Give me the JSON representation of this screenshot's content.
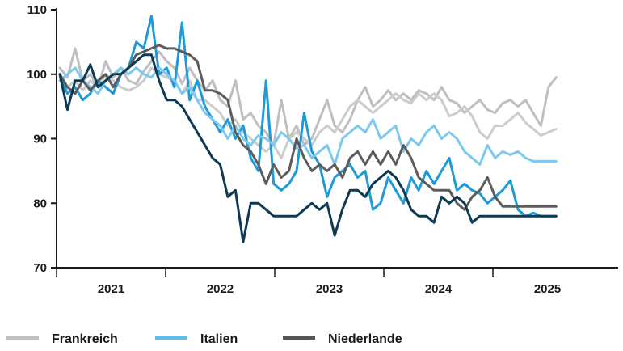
{
  "chart_data": {
    "type": "line",
    "title": "",
    "xlabel": "",
    "ylabel": "",
    "ylim": [
      70,
      110
    ],
    "xlim": [
      2020.5,
      2025.5
    ],
    "y_ticks": [
      70,
      80,
      90,
      100,
      110
    ],
    "x_ticks": [
      {
        "label": "2021",
        "value": 2021.0
      },
      {
        "label": "2022",
        "value": 2022.0
      },
      {
        "label": "2023",
        "value": 2023.0
      },
      {
        "label": "2024",
        "value": 2024.0
      },
      {
        "label": "2025",
        "value": 2025.0
      }
    ],
    "x_gridlines": [
      2021.5,
      2022.5,
      2023.5,
      2024.5
    ],
    "grid": "vertical year separators",
    "legend_placement": "bottom",
    "series": [
      {
        "name": "Frankreich",
        "color": "#bfbfbf",
        "x": [
          2020.53,
          2020.6,
          2020.67,
          2020.74,
          2020.81,
          2020.88,
          2020.95,
          2021.02,
          2021.09,
          2021.16,
          2021.23,
          2021.3,
          2021.37,
          2021.44,
          2021.51,
          2021.58,
          2021.65,
          2021.72,
          2021.79,
          2021.86,
          2021.93,
          2022.0,
          2022.07,
          2022.14,
          2022.21,
          2022.28,
          2022.35,
          2022.42,
          2022.49,
          2022.56,
          2022.63,
          2022.7,
          2022.77,
          2022.84,
          2022.91,
          2022.98,
          2023.05,
          2023.12,
          2023.19,
          2023.26,
          2023.33,
          2023.4,
          2023.47,
          2023.54,
          2023.61,
          2023.68,
          2023.75,
          2023.82,
          2023.89,
          2023.96,
          2024.03,
          2024.1,
          2024.17,
          2024.24,
          2024.31,
          2024.38,
          2024.45,
          2024.52,
          2024.59,
          2024.66,
          2024.73,
          2024.8,
          2024.87,
          2024.94,
          2025.01,
          2025.08
        ],
        "values": [
          101,
          99.5,
          104,
          99,
          100,
          98,
          102,
          99.5,
          101,
          99,
          98.5,
          100.5,
          102,
          103.5,
          102,
          101,
          98.5,
          101,
          99,
          97.5,
          99,
          96,
          95,
          99,
          93,
          94,
          92,
          91,
          89,
          96,
          90,
          92,
          89,
          90,
          93,
          96,
          92,
          91,
          93,
          96,
          98,
          95,
          96,
          97.5,
          96,
          97,
          96,
          97.5,
          97,
          96,
          98,
          96,
          95.5,
          94,
          95,
          96,
          94.5,
          94,
          95.5,
          96,
          95,
          96,
          94,
          92,
          98,
          99.5
        ]
      },
      {
        "name": "Frankreich",
        "color": "#cccccc",
        "x": [
          2020.53,
          2020.6,
          2020.67,
          2020.74,
          2020.81,
          2020.88,
          2020.95,
          2021.02,
          2021.09,
          2021.16,
          2021.23,
          2021.3,
          2021.37,
          2021.44,
          2021.51,
          2021.58,
          2021.65,
          2021.72,
          2021.79,
          2021.86,
          2021.93,
          2022.0,
          2022.07,
          2022.14,
          2022.21,
          2022.28,
          2022.35,
          2022.42,
          2022.49,
          2022.56,
          2022.63,
          2022.7,
          2022.77,
          2022.84,
          2022.91,
          2022.98,
          2023.05,
          2023.12,
          2023.19,
          2023.26,
          2023.33,
          2023.4,
          2023.47,
          2023.54,
          2023.61,
          2023.68,
          2023.75,
          2023.82,
          2023.89,
          2023.96,
          2024.03,
          2024.1,
          2024.17,
          2024.24,
          2024.31,
          2024.38,
          2024.45,
          2024.52,
          2024.59,
          2024.66,
          2024.73,
          2024.8,
          2024.87,
          2024.94,
          2025.01,
          2025.08
        ],
        "values": [
          100,
          98,
          99,
          97.5,
          99,
          98,
          100,
          99,
          98,
          97.5,
          98,
          99,
          101,
          100,
          99.5,
          99,
          97,
          99,
          96,
          96,
          95,
          94,
          92,
          93,
          91,
          90,
          89,
          88,
          89,
          87,
          90,
          91,
          90,
          89,
          91,
          92,
          91,
          93,
          95,
          96,
          95,
          94,
          95,
          96,
          97,
          96,
          95.5,
          97,
          96,
          97,
          96,
          93.5,
          94,
          95,
          93.5,
          91,
          90,
          92,
          92,
          93,
          94,
          92.5,
          91.5,
          90.5,
          91,
          91.5
        ]
      },
      {
        "name": "Italien",
        "color": "#1e9ad6",
        "x": [
          2020.53,
          2020.6,
          2020.67,
          2020.74,
          2020.81,
          2020.88,
          2020.95,
          2021.02,
          2021.09,
          2021.16,
          2021.23,
          2021.3,
          2021.37,
          2021.44,
          2021.51,
          2021.58,
          2021.65,
          2021.72,
          2021.79,
          2021.86,
          2021.93,
          2022.0,
          2022.07,
          2022.14,
          2022.21,
          2022.28,
          2022.35,
          2022.42,
          2022.49,
          2022.56,
          2022.63,
          2022.7,
          2022.77,
          2022.84,
          2022.91,
          2022.98,
          2023.05,
          2023.12,
          2023.19,
          2023.26,
          2023.33,
          2023.4,
          2023.47,
          2023.54,
          2023.61,
          2023.68,
          2023.75,
          2023.82,
          2023.89,
          2023.96,
          2024.03,
          2024.1,
          2024.17,
          2024.24,
          2024.31,
          2024.38,
          2024.45,
          2024.52,
          2024.59,
          2024.66,
          2024.73,
          2024.8,
          2024.87,
          2024.94,
          2025.01,
          2025.08
        ],
        "values": [
          100,
          97,
          98,
          96,
          97,
          99,
          98,
          97,
          100,
          101,
          105,
          104,
          109,
          100,
          101,
          98,
          108,
          96,
          99,
          95,
          93,
          91,
          93,
          90,
          92,
          87,
          85,
          99,
          83,
          82,
          83,
          85,
          94,
          88,
          86,
          81,
          84,
          85,
          86,
          84,
          85,
          79,
          80,
          84,
          82,
          80,
          84,
          82,
          85,
          83,
          85,
          87,
          82,
          83,
          82,
          81.5,
          80,
          81,
          82,
          83.5,
          79,
          78,
          78.5,
          78,
          78,
          78
        ]
      },
      {
        "name": "Italien",
        "color": "#7cc8ef",
        "x": [
          2020.53,
          2020.6,
          2020.67,
          2020.74,
          2020.81,
          2020.88,
          2020.95,
          2021.02,
          2021.09,
          2021.16,
          2021.23,
          2021.3,
          2021.37,
          2021.44,
          2021.51,
          2021.58,
          2021.65,
          2021.72,
          2021.79,
          2021.86,
          2021.93,
          2022.0,
          2022.07,
          2022.14,
          2022.21,
          2022.28,
          2022.35,
          2022.42,
          2022.49,
          2022.56,
          2022.63,
          2022.7,
          2022.77,
          2022.84,
          2022.91,
          2022.98,
          2023.05,
          2023.12,
          2023.19,
          2023.26,
          2023.33,
          2023.4,
          2023.47,
          2023.54,
          2023.61,
          2023.68,
          2023.75,
          2023.82,
          2023.89,
          2023.96,
          2024.03,
          2024.1,
          2024.17,
          2024.24,
          2024.31,
          2024.38,
          2024.45,
          2024.52,
          2024.59,
          2024.66,
          2024.73,
          2024.8,
          2024.87,
          2024.94,
          2025.01,
          2025.08
        ],
        "values": [
          99,
          100,
          101,
          99,
          98,
          97,
          99,
          100,
          101,
          100,
          101,
          100,
          99.5,
          101,
          100,
          99,
          97,
          98,
          96,
          94,
          93,
          92,
          90,
          92,
          90,
          89,
          90.5,
          90,
          89,
          91,
          90,
          88.5,
          89,
          87,
          88,
          89,
          86,
          90,
          91,
          92,
          91,
          93,
          90,
          91,
          92,
          88,
          90,
          89,
          91,
          92,
          90,
          91,
          90,
          88,
          87,
          86,
          89,
          87,
          88,
          87.5,
          88,
          87,
          86.5,
          86.5,
          86.5,
          86.5
        ]
      },
      {
        "name": "Niederlande",
        "color": "#5c5c5c",
        "x": [
          2020.53,
          2020.6,
          2020.67,
          2020.74,
          2020.81,
          2020.88,
          2020.95,
          2021.02,
          2021.09,
          2021.16,
          2021.23,
          2021.3,
          2021.37,
          2021.44,
          2021.51,
          2021.58,
          2021.65,
          2021.72,
          2021.79,
          2021.86,
          2021.93,
          2022.0,
          2022.07,
          2022.14,
          2022.21,
          2022.28,
          2022.35,
          2022.42,
          2022.49,
          2022.56,
          2022.63,
          2022.7,
          2022.77,
          2022.84,
          2022.91,
          2022.98,
          2023.05,
          2023.12,
          2023.19,
          2023.26,
          2023.33,
          2023.4,
          2023.47,
          2023.54,
          2023.61,
          2023.68,
          2023.75,
          2023.82,
          2023.89,
          2023.96,
          2024.03,
          2024.1,
          2024.17,
          2024.24,
          2024.31,
          2024.38,
          2024.45,
          2024.52,
          2024.59,
          2024.66,
          2024.73,
          2024.8,
          2024.87,
          2024.94,
          2025.01,
          2025.08
        ],
        "values": [
          100,
          98,
          97,
          99,
          97.5,
          99,
          100,
          98,
          100,
          101,
          103,
          103.5,
          104,
          104.5,
          104,
          104,
          103.5,
          103,
          102,
          97.5,
          97.5,
          97,
          96,
          91,
          89,
          88,
          86,
          83,
          86,
          84,
          85,
          90,
          87,
          85,
          86,
          85,
          86,
          84,
          87,
          88,
          86,
          88,
          86,
          88,
          86,
          89,
          87,
          84,
          83,
          82,
          82,
          82,
          80,
          79,
          81,
          82,
          84,
          81,
          79.5,
          79.5,
          79.5,
          79.5,
          79.5,
          79.5,
          79.5,
          79.5
        ]
      },
      {
        "name": "Niederlande",
        "color": "#0d3a52",
        "x": [
          2020.53,
          2020.6,
          2020.67,
          2020.74,
          2020.81,
          2020.88,
          2020.95,
          2021.02,
          2021.09,
          2021.16,
          2021.23,
          2021.3,
          2021.37,
          2021.44,
          2021.51,
          2021.58,
          2021.65,
          2021.72,
          2021.79,
          2021.86,
          2021.93,
          2022.0,
          2022.07,
          2022.14,
          2022.21,
          2022.28,
          2022.35,
          2022.42,
          2022.49,
          2022.56,
          2022.63,
          2022.7,
          2022.77,
          2022.84,
          2022.91,
          2022.98,
          2023.05,
          2023.12,
          2023.19,
          2023.26,
          2023.33,
          2023.4,
          2023.47,
          2023.54,
          2023.61,
          2023.68,
          2023.75,
          2023.82,
          2023.89,
          2023.96,
          2024.03,
          2024.1,
          2024.17,
          2024.24,
          2024.31,
          2024.38,
          2024.45,
          2024.52,
          2024.59,
          2024.66,
          2024.73,
          2024.8,
          2024.87,
          2024.94,
          2025.01,
          2025.08
        ],
        "values": [
          100,
          94.5,
          99,
          99,
          101.5,
          98,
          99,
          100,
          100,
          101,
          102,
          103,
          103,
          99,
          96,
          96,
          95,
          93,
          91,
          89,
          87,
          86,
          81,
          82,
          74,
          80,
          80,
          79,
          78,
          78,
          78,
          78,
          79,
          80,
          79,
          80,
          75,
          79,
          82,
          82,
          81,
          83,
          84,
          85,
          84,
          82,
          79,
          78,
          78,
          77,
          81,
          80,
          81,
          80,
          77,
          78,
          78,
          78,
          78,
          78,
          78,
          78,
          78,
          78,
          78,
          78
        ]
      }
    ],
    "legend": [
      {
        "label": "Frankreich",
        "color": "#bfbfbf"
      },
      {
        "label": "Italien",
        "color": "#5bbdea"
      },
      {
        "label": "Niederlande",
        "color": "#555555"
      }
    ]
  }
}
